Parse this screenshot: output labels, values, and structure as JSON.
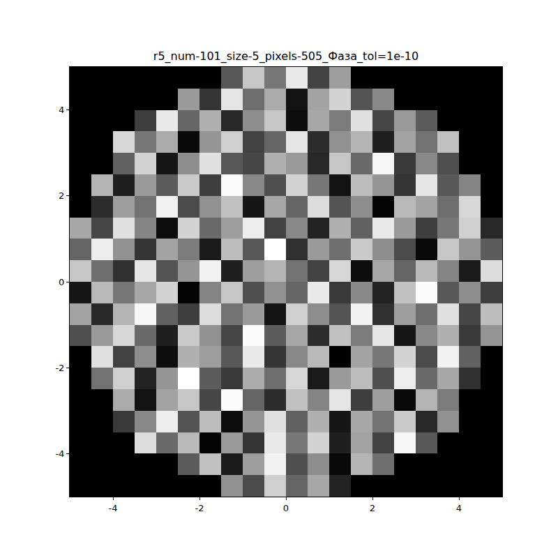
{
  "chart_data": {
    "type": "heatmap",
    "title": "r5_num-101_size-5_pixels-505_Фаза_tol=1e-10",
    "color": "gray",
    "x": [
      -4.75,
      -4.25,
      -3.75,
      -3.25,
      -2.75,
      -2.25,
      -1.75,
      -1.25,
      -0.75,
      -0.25,
      0.25,
      0.75,
      1.25,
      1.75,
      2.25,
      2.75,
      3.25,
      3.75,
      4.25,
      4.75
    ],
    "y": [
      -4.75,
      -4.25,
      -3.75,
      -3.25,
      -2.75,
      -2.25,
      -1.75,
      -1.25,
      -0.75,
      -0.25,
      0.25,
      0.75,
      1.25,
      1.75,
      2.25,
      2.75,
      3.25,
      3.75,
      4.25,
      4.75
    ],
    "z": [
      [
        null,
        null,
        null,
        null,
        null,
        null,
        null,
        0.4,
        -1.2,
        1.8,
        -0.6,
        0.9,
        -2.1,
        null,
        null,
        null,
        null,
        null,
        null,
        null
      ],
      [
        null,
        null,
        null,
        null,
        null,
        -0.8,
        1.5,
        -2.3,
        0.7,
        2.6,
        -1.1,
        0.3,
        -2.7,
        1.2,
        -0.4,
        null,
        null,
        null,
        null,
        null
      ],
      [
        null,
        null,
        null,
        2.1,
        -0.5,
        1.3,
        -2.8,
        0.6,
        -1.7,
        2.4,
        -0.2,
        1.9,
        -2.2,
        0.8,
        -1.4,
        2.7,
        -0.9,
        null,
        null,
        null
      ],
      [
        null,
        null,
        -1.6,
        0.2,
        2.5,
        -1.0,
        1.4,
        -2.6,
        0.5,
        2.2,
        -0.7,
        1.1,
        -2.4,
        0.9,
        -0.3,
        1.7,
        -2.0,
        0.4,
        null,
        null
      ],
      [
        null,
        null,
        1.0,
        -2.5,
        0.8,
        1.6,
        -1.3,
        2.8,
        -0.6,
        -1.9,
        1.5,
        0.1,
        2.3,
        -1.5,
        0.7,
        -2.7,
        1.2,
        -0.1,
        null,
        null
      ],
      [
        null,
        -0.3,
        1.8,
        -2.1,
        0.5,
        2.9,
        -0.8,
        -1.6,
        1.0,
        -0.4,
        2.0,
        -2.3,
        0.6,
        1.4,
        -1.1,
        2.5,
        -0.5,
        0.9,
        -1.8,
        null
      ],
      [
        null,
        2.2,
        -1.4,
        0.3,
        -2.6,
        1.1,
        0.7,
        -0.9,
        2.4,
        -1.7,
        0.2,
        1.3,
        -2.9,
        0.8,
        -0.2,
        1.9,
        -1.2,
        2.6,
        -0.7,
        null
      ],
      [
        -1.1,
        0.6,
        2.0,
        -0.5,
        -2.2,
        1.7,
        0.4,
        -1.3,
        2.8,
        -0.8,
        0.9,
        -1.9,
        1.5,
        -0.1,
        2.3,
        -2.4,
        0.2,
        1.1,
        -1.6,
        0.5
      ],
      [
        0.8,
        -2.0,
        1.2,
        2.7,
        -0.7,
        -1.5,
        2.1,
        -0.3,
        0.6,
        -2.5,
        1.8,
        0.3,
        -1.0,
        2.6,
        -1.8,
        0.7,
        -0.4,
        2.2,
        -1.3,
        1.4
      ],
      [
        -2.4,
        1.3,
        -0.2,
        0.9,
        1.9,
        -2.8,
        0.1,
        1.6,
        -1.1,
        0.4,
        -0.6,
        2.4,
        -1.6,
        0.2,
        -2.1,
        1.5,
        2.8,
        -0.9,
        0.3,
        -1.5
      ],
      [
        1.6,
        -0.4,
        -1.8,
        2.3,
        -1.0,
        0.5,
        2.6,
        -2.2,
        0.7,
        1.2,
        -0.3,
        -1.4,
        2.0,
        -2.6,
        0.9,
        -0.6,
        1.3,
        0.1,
        -2.3,
        2.1
      ],
      [
        -0.6,
        2.5,
        0.4,
        -1.7,
        0.8,
        -0.1,
        -2.3,
        1.4,
        -0.9,
        2.9,
        -1.8,
        0.6,
        -0.4,
        1.7,
        0.3,
        -1.2,
        -2.7,
        1.6,
        0.5,
        -0.8
      ],
      [
        0.9,
        -1.3,
        2.2,
        0.1,
        -2.6,
        1.9,
        -0.5,
        0.7,
        2.5,
        -1.4,
        0.2,
        -2.1,
        1.1,
        -0.7,
        2.4,
        0.6,
        -1.5,
        -0.2,
        1.8,
        -2.0
      ],
      [
        null,
        -1.9,
        0.7,
        -0.3,
        2.6,
        -1.2,
        0.4,
        1.5,
        -2.4,
        0.9,
        -0.6,
        2.1,
        -1.0,
        0.3,
        -2.8,
        1.3,
        0.8,
        -0.4,
        2.0,
        null
      ],
      [
        null,
        1.2,
        -2.2,
        0.6,
        -0.8,
        1.7,
        -1.5,
        2.8,
        0.2,
        -1.1,
        1.9,
        -0.2,
        -2.5,
        1.4,
        0.5,
        -1.7,
        2.3,
        -0.9,
        0.1,
        null
      ],
      [
        null,
        null,
        -0.7,
        1.9,
        -2.4,
        0.3,
        2.2,
        -0.9,
        -1.3,
        1.1,
        0.6,
        -2.0,
        1.6,
        -0.5,
        2.7,
        -1.6,
        0.2,
        -1.1,
        null,
        null
      ],
      [
        null,
        null,
        2.0,
        -0.2,
        1.0,
        -2.7,
        0.5,
        1.8,
        -1.4,
        -0.6,
        2.3,
        -1.9,
        0.4,
        1.2,
        -2.2,
        0.8,
        -0.3,
        1.5,
        null,
        null
      ],
      [
        null,
        null,
        null,
        -1.5,
        2.4,
        -0.6,
        1.1,
        -2.0,
        0.3,
        1.6,
        -2.6,
        0.9,
        -0.1,
        2.2,
        -1.3,
        0.6,
        -0.8,
        null,
        null,
        null
      ],
      [
        null,
        null,
        null,
        null,
        null,
        0.6,
        -1.7,
        2.3,
        -0.4,
        1.0,
        -2.5,
        0.8,
        1.9,
        -1.0,
        0.2,
        null,
        null,
        null,
        null,
        null
      ],
      [
        null,
        null,
        null,
        null,
        null,
        null,
        null,
        -0.9,
        1.6,
        -0.2,
        2.4,
        -1.4,
        0.7,
        null,
        null,
        null,
        null,
        null,
        null,
        null
      ]
    ],
    "xlim": [
      -5,
      5
    ],
    "ylim": [
      -5,
      5
    ],
    "xticks": [
      -4,
      -2,
      0,
      2,
      4
    ],
    "yticks": [
      -4,
      -2,
      0,
      2,
      4
    ],
    "grid": false
  }
}
